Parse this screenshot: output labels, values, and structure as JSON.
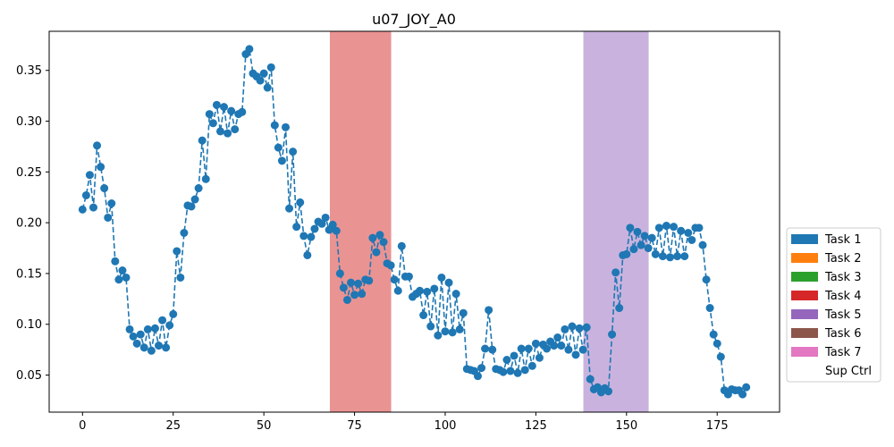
{
  "chart_data": {
    "type": "line",
    "title": "u07_JOY_A0",
    "xlabel": "",
    "ylabel": "",
    "xlim": [
      -9.2,
      192.2
    ],
    "ylim": [
      0.0135,
      0.3885
    ],
    "x_ticks": [
      0,
      25,
      50,
      75,
      100,
      125,
      150,
      175
    ],
    "y_ticks": [
      0.05,
      0.1,
      0.15,
      0.2,
      0.25,
      0.3,
      0.35
    ],
    "grid": false,
    "line_style": "dashed",
    "marker": "circle",
    "series": [
      {
        "color": "#1f77b4",
        "values": [
          0.213,
          0.227,
          0.247,
          0.215,
          0.276,
          0.255,
          0.234,
          0.205,
          0.219,
          0.162,
          0.144,
          0.153,
          0.146,
          0.095,
          0.088,
          0.081,
          0.09,
          0.077,
          0.095,
          0.074,
          0.096,
          0.079,
          0.104,
          0.077,
          0.099,
          0.11,
          0.172,
          0.146,
          0.19,
          0.217,
          0.216,
          0.223,
          0.234,
          0.281,
          0.243,
          0.307,
          0.298,
          0.316,
          0.29,
          0.314,
          0.288,
          0.31,
          0.292,
          0.307,
          0.309,
          0.366,
          0.371,
          0.347,
          0.344,
          0.34,
          0.347,
          0.333,
          0.353,
          0.296,
          0.274,
          0.261,
          0.294,
          0.214,
          0.27,
          0.196,
          0.22,
          0.187,
          0.168,
          0.186,
          0.194,
          0.201,
          0.199,
          0.205,
          0.193,
          0.198,
          0.192,
          0.15,
          0.136,
          0.124,
          0.141,
          0.129,
          0.14,
          0.13,
          0.144,
          0.143,
          0.185,
          0.171,
          0.188,
          0.181,
          0.16,
          0.158,
          0.144,
          0.133,
          0.177,
          0.147,
          0.147,
          0.127,
          0.13,
          0.133,
          0.109,
          0.132,
          0.098,
          0.135,
          0.089,
          0.146,
          0.093,
          0.141,
          0.092,
          0.13,
          0.095,
          0.111,
          0.056,
          0.055,
          0.054,
          0.049,
          0.057,
          0.076,
          0.114,
          0.075,
          0.056,
          0.055,
          0.053,
          0.065,
          0.054,
          0.069,
          0.052,
          0.076,
          0.055,
          0.076,
          0.059,
          0.081,
          0.067,
          0.08,
          0.076,
          0.083,
          0.079,
          0.087,
          0.079,
          0.095,
          0.075,
          0.098,
          0.07,
          0.096,
          0.075,
          0.097,
          0.046,
          0.036,
          0.038,
          0.033,
          0.037,
          0.034,
          0.09,
          0.151,
          0.116,
          0.168,
          0.169,
          0.195,
          0.174,
          0.191,
          0.178,
          0.187,
          0.175,
          0.185,
          0.169,
          0.195,
          0.167,
          0.197,
          0.166,
          0.196,
          0.167,
          0.192,
          0.167,
          0.19,
          0.183,
          0.195,
          0.195,
          0.178,
          0.144,
          0.116,
          0.09,
          0.081,
          0.068,
          0.035,
          0.031,
          0.036,
          0.035,
          0.035,
          0.031,
          0.038
        ]
      }
    ],
    "shaded_regions": [
      {
        "x_start": 68.2,
        "x_end": 85.1,
        "color": "#d62728",
        "alpha": 0.5,
        "legend": "Task 4"
      },
      {
        "x_start": 138.1,
        "x_end": 156.1,
        "color": "#9467bd",
        "alpha": 0.5,
        "legend": "Task 5"
      }
    ],
    "legend": {
      "placement": "right-outside",
      "entries": [
        {
          "label": "Task 1",
          "color": "#1f77b4"
        },
        {
          "label": "Task 2",
          "color": "#ff7f0e"
        },
        {
          "label": "Task 3",
          "color": "#2ca02c"
        },
        {
          "label": "Task 4",
          "color": "#d62728"
        },
        {
          "label": "Task 5",
          "color": "#9467bd"
        },
        {
          "label": "Task 6",
          "color": "#8c564b"
        },
        {
          "label": "Task 7",
          "color": "#e377c2"
        },
        {
          "label": "Sup Ctrl",
          "color": "#ffffff"
        }
      ]
    }
  }
}
